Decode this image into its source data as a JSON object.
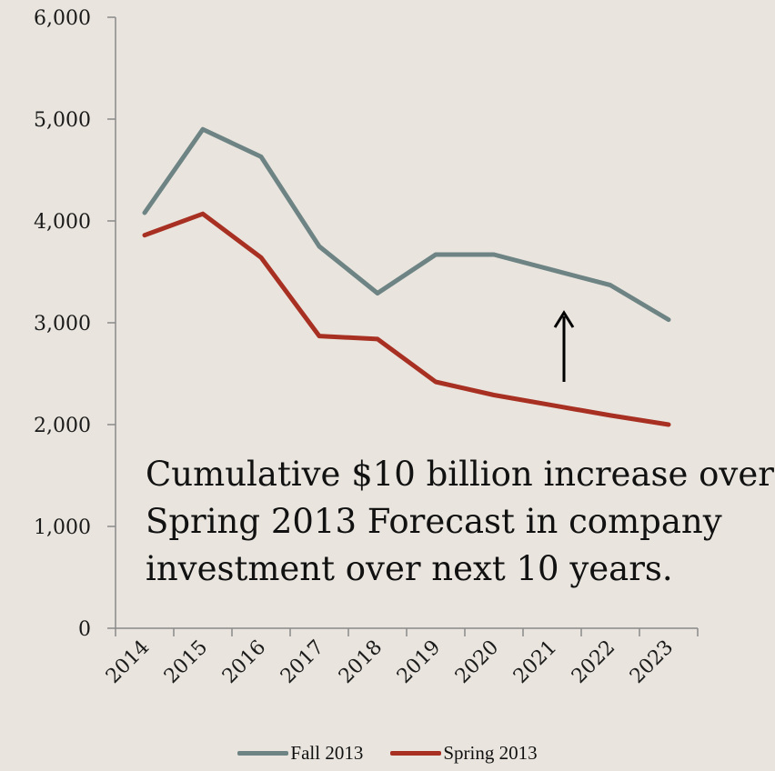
{
  "chart_data": {
    "type": "line",
    "categories": [
      "2014",
      "2015",
      "2016",
      "2017",
      "2018",
      "2019",
      "2020",
      "2021",
      "2022",
      "2023"
    ],
    "series": [
      {
        "name": "Fall 2013",
        "color": "#6e8484",
        "values": [
          4080,
          4900,
          4630,
          3750,
          3290,
          3670,
          3670,
          3520,
          3370,
          3030
        ]
      },
      {
        "name": "Spring 2013",
        "color": "#a83022",
        "values": [
          3860,
          4070,
          3640,
          2870,
          2840,
          2420,
          2290,
          2190,
          2090,
          2000
        ]
      }
    ],
    "yticks": [
      "0",
      "1,000",
      "2,000",
      "3,000",
      "4,000",
      "5,000",
      "6,000"
    ],
    "ylim": [
      0,
      6000
    ],
    "annotation": {
      "lines": [
        "Cumulative $10 billion increase over",
        "Spring 2013 Forecast in company",
        "investment over next 10 years."
      ],
      "arrow": "up"
    },
    "legend": "bottom",
    "grid": false
  }
}
